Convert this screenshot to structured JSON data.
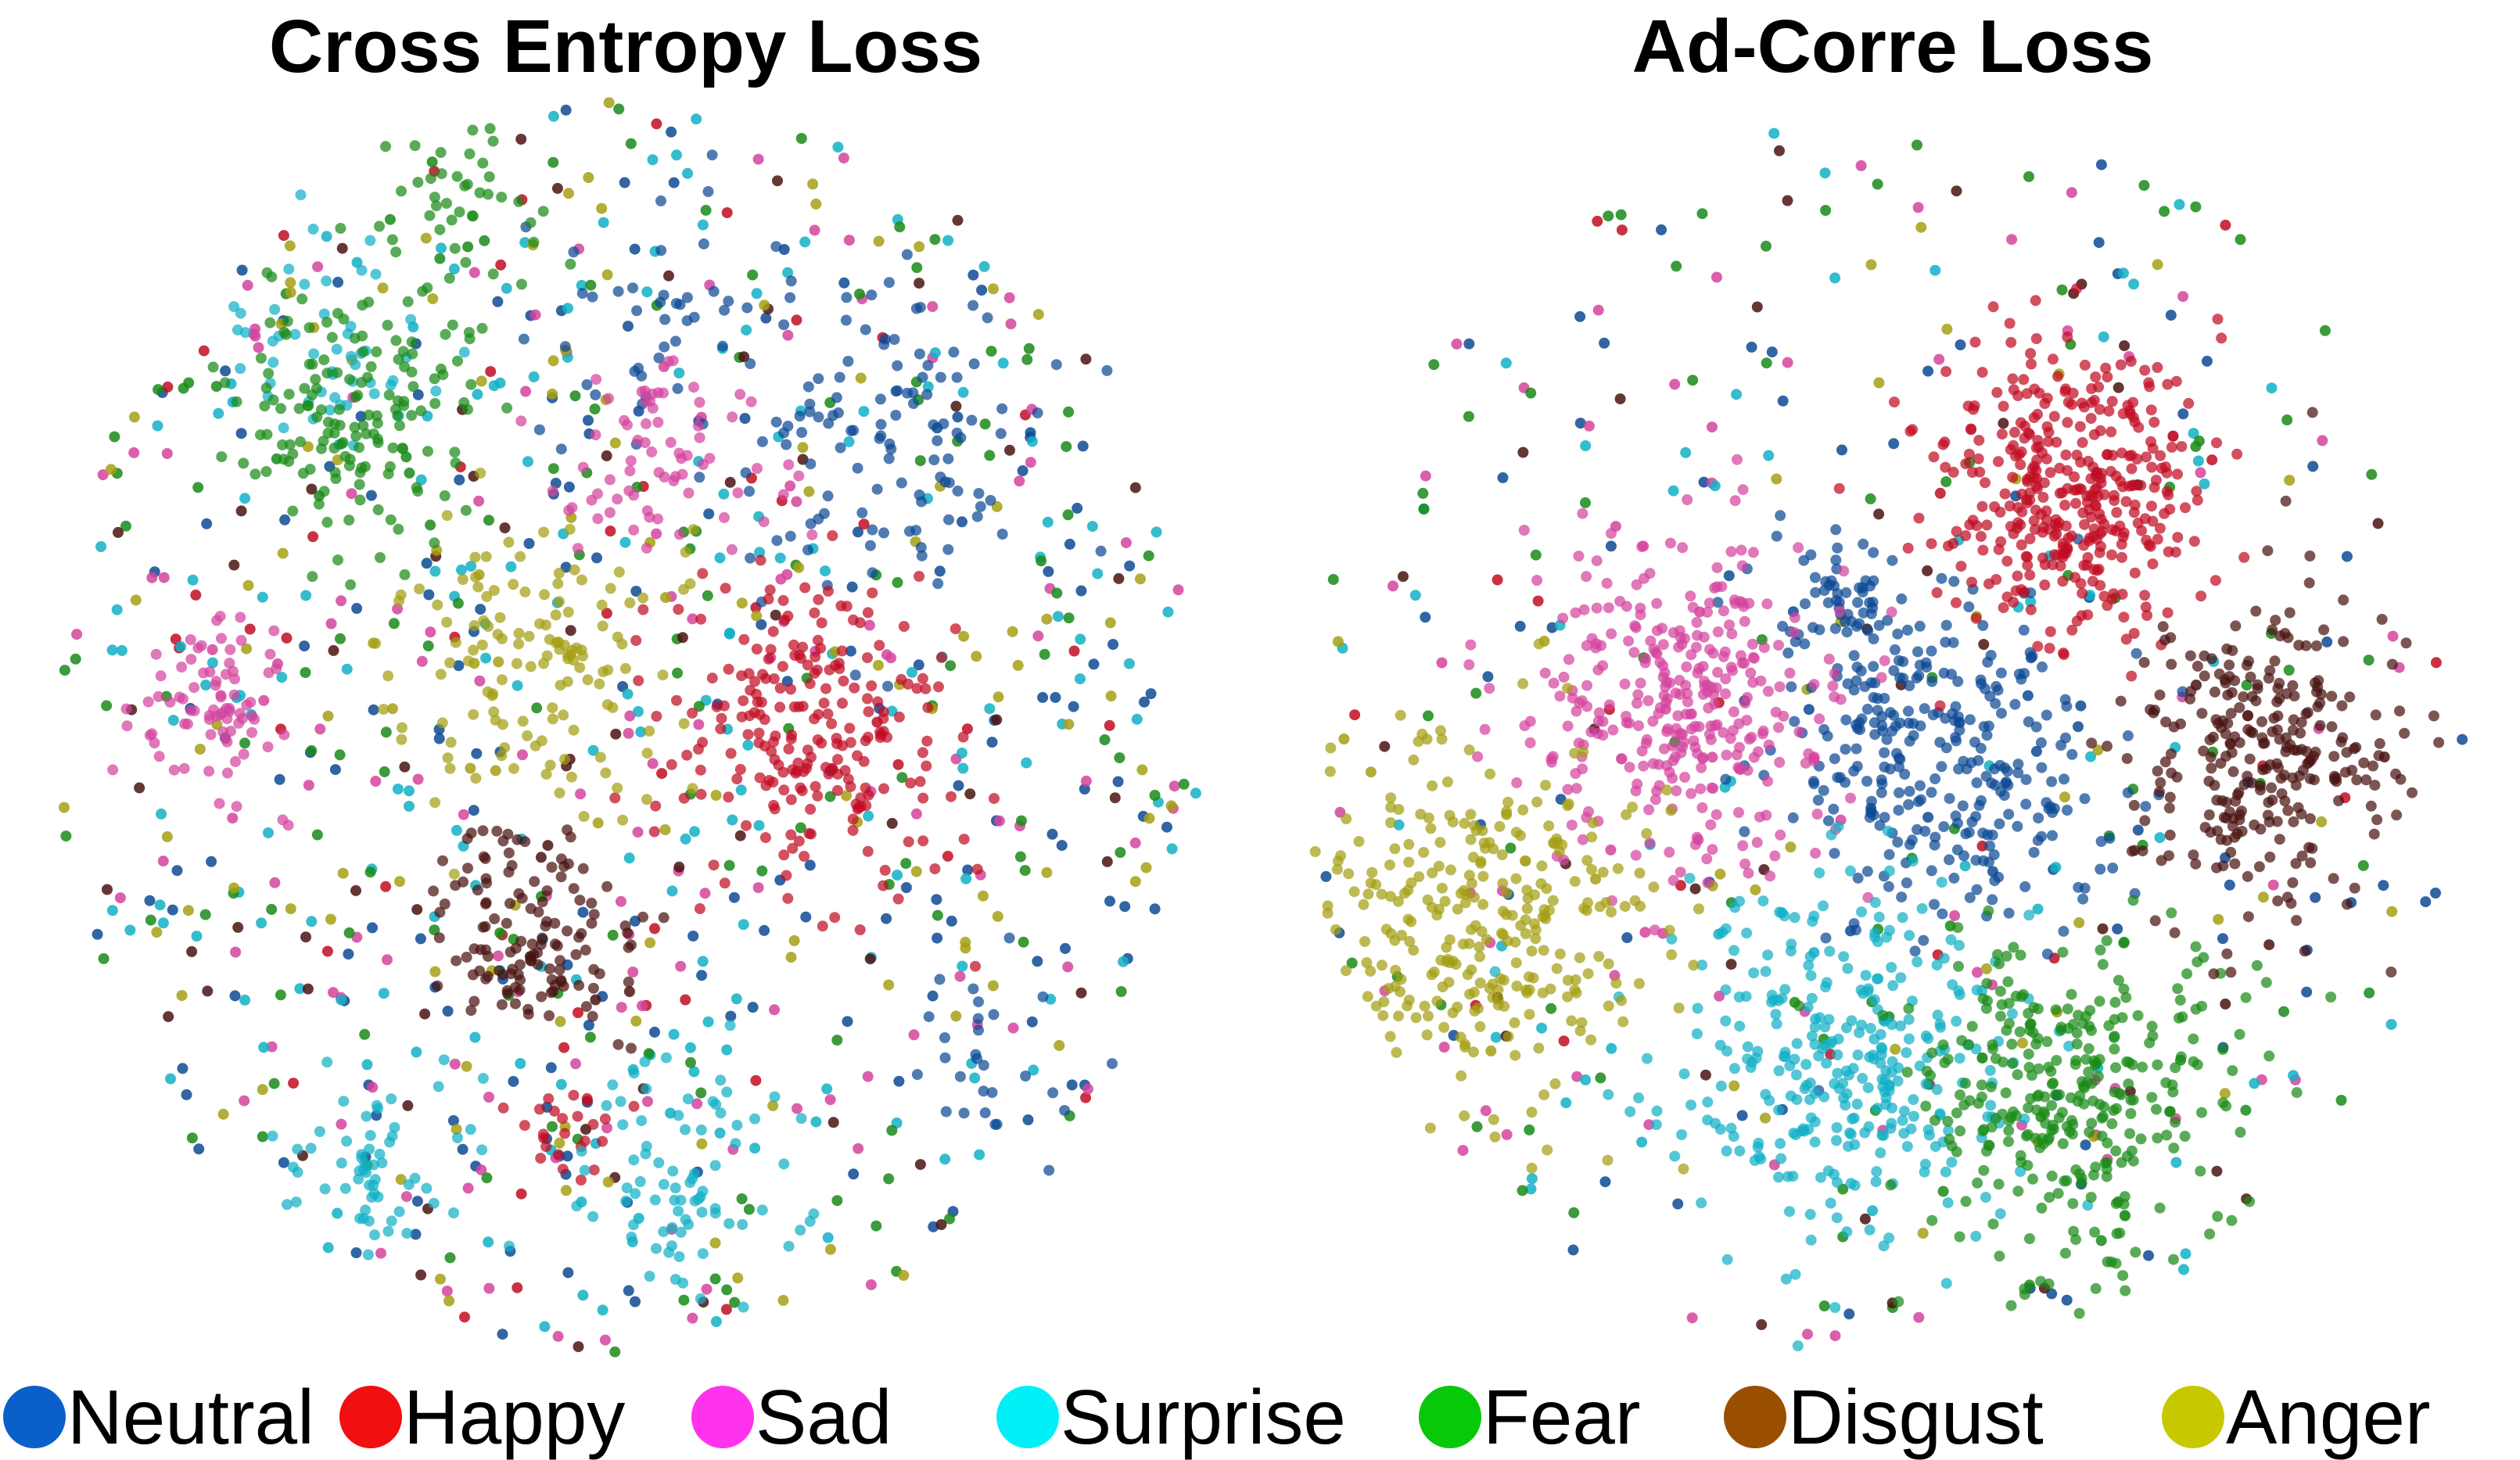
{
  "chart_data": [
    {
      "type": "scatter",
      "title": "Cross Entropy Loss",
      "xlabel": "",
      "ylabel": "",
      "grid": false,
      "axes_visible": false,
      "xlim": [
        -1,
        1
      ],
      "ylim": [
        -1,
        1
      ],
      "series": [
        {
          "name": "Neutral",
          "clusters": [
            {
              "cx": 0.42,
              "cy": 0.45,
              "spread": 0.14,
              "n": 120
            },
            {
              "cx": 0.62,
              "cy": -0.52,
              "spread": 0.08,
              "n": 30
            },
            {
              "cx": 0.05,
              "cy": 0.62,
              "spread": 0.12,
              "n": 40
            }
          ],
          "scatter_n": 180
        },
        {
          "name": "Happy",
          "clusters": [
            {
              "cx": 0.3,
              "cy": -0.02,
              "spread": 0.12,
              "n": 230
            },
            {
              "cx": -0.1,
              "cy": -0.62,
              "spread": 0.05,
              "n": 25
            }
          ],
          "scatter_n": 50
        },
        {
          "name": "Sad",
          "clusters": [
            {
              "cx": -0.68,
              "cy": 0.02,
              "spread": 0.07,
              "n": 80
            },
            {
              "cx": 0.05,
              "cy": 0.42,
              "spread": 0.09,
              "n": 70
            }
          ],
          "scatter_n": 140
        },
        {
          "name": "Surprise",
          "clusters": [
            {
              "cx": 0.1,
              "cy": -0.7,
              "spread": 0.09,
              "n": 80
            },
            {
              "cx": -0.42,
              "cy": -0.68,
              "spread": 0.08,
              "n": 60
            },
            {
              "cx": -0.5,
              "cy": 0.6,
              "spread": 0.1,
              "n": 50
            }
          ],
          "scatter_n": 200
        },
        {
          "name": "Fear",
          "clusters": [
            {
              "cx": -0.45,
              "cy": 0.48,
              "spread": 0.1,
              "n": 150
            },
            {
              "cx": -0.28,
              "cy": 0.78,
              "spread": 0.08,
              "n": 50
            }
          ],
          "scatter_n": 150
        },
        {
          "name": "Disgust",
          "clusters": [
            {
              "cx": -0.15,
              "cy": -0.32,
              "spread": 0.08,
              "n": 130
            }
          ],
          "scatter_n": 70
        },
        {
          "name": "Anger",
          "clusters": [
            {
              "cx": -0.15,
              "cy": 0.1,
              "spread": 0.12,
              "n": 130
            }
          ],
          "scatter_n": 130
        }
      ]
    },
    {
      "type": "scatter",
      "title": "Ad-Corre Loss",
      "xlabel": "",
      "ylabel": "",
      "grid": false,
      "axes_visible": false,
      "xlim": [
        -1,
        1
      ],
      "ylim": [
        -1,
        1
      ],
      "series": [
        {
          "name": "Neutral",
          "clusters": [
            {
              "cx": 0.08,
              "cy": -0.05,
              "spread": 0.14,
              "n": 290
            },
            {
              "cx": -0.08,
              "cy": 0.2,
              "spread": 0.06,
              "n": 60
            }
          ],
          "scatter_n": 80
        },
        {
          "name": "Happy",
          "clusters": [
            {
              "cx": 0.3,
              "cy": 0.38,
              "spread": 0.11,
              "n": 380
            }
          ],
          "scatter_n": 20
        },
        {
          "name": "Sad",
          "clusters": [
            {
              "cx": -0.35,
              "cy": 0.06,
              "spread": 0.13,
              "n": 330
            }
          ],
          "scatter_n": 70
        },
        {
          "name": "Surprise",
          "clusters": [
            {
              "cx": -0.08,
              "cy": -0.52,
              "spread": 0.14,
              "n": 320
            }
          ],
          "scatter_n": 60
        },
        {
          "name": "Fear",
          "clusters": [
            {
              "cx": 0.3,
              "cy": -0.58,
              "spread": 0.13,
              "n": 320
            }
          ],
          "scatter_n": 90
        },
        {
          "name": "Disgust",
          "clusters": [
            {
              "cx": 0.62,
              "cy": -0.02,
              "spread": 0.12,
              "n": 280
            }
          ],
          "scatter_n": 40
        },
        {
          "name": "Anger",
          "clusters": [
            {
              "cx": -0.68,
              "cy": -0.3,
              "spread": 0.14,
              "n": 300
            }
          ],
          "scatter_n": 40
        }
      ]
    }
  ],
  "legend": [
    {
      "label": "Neutral",
      "color": "#0a60c8"
    },
    {
      "label": "Happy",
      "color": "#f01010"
    },
    {
      "label": "Sad",
      "color": "#ff33ee"
    },
    {
      "label": "Surprise",
      "color": "#00f0f8"
    },
    {
      "label": "Fear",
      "color": "#08c80a"
    },
    {
      "label": "Disgust",
      "color": "#9a4f00"
    },
    {
      "label": "Anger",
      "color": "#c8c800"
    }
  ],
  "point_colors": {
    "Neutral": "#0d4a94",
    "Happy": "#c10d22",
    "Sad": "#d4449e",
    "Surprise": "#12b0c6",
    "Fear": "#1a8a18",
    "Disgust": "#4a1410",
    "Anger": "#a4a014"
  }
}
